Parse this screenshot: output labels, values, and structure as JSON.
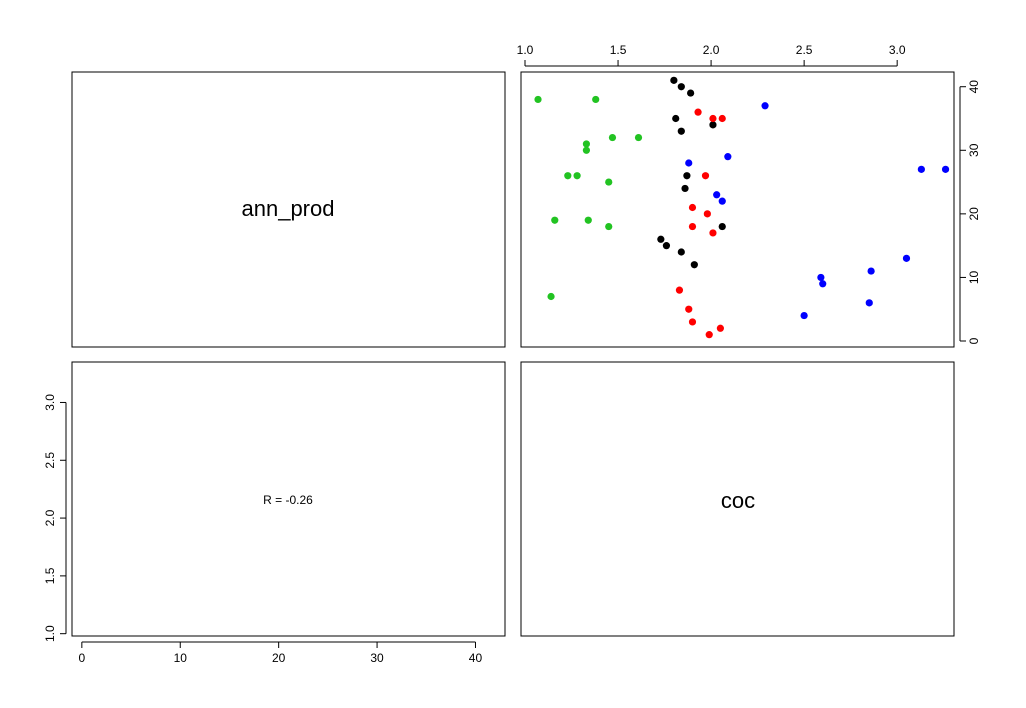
{
  "chart_data": {
    "type": "scatter",
    "layout": "pairs-matrix",
    "variables": [
      "ann_prod",
      "coc"
    ],
    "diagonal_labels": {
      "ann_prod": "ann_prod",
      "coc": "coc"
    },
    "correlation_text": "R = -0.26",
    "upper_panel": {
      "x_variable": "coc",
      "y_variable": "ann_prod",
      "xlim": [
        1.0,
        3.3
      ],
      "ylim": [
        0,
        42
      ],
      "x_ticks": [
        1.0,
        1.5,
        2.0,
        2.5,
        3.0
      ],
      "x_tick_labels": [
        "1.0",
        "1.5",
        "2.0",
        "2.5",
        "3.0"
      ],
      "y_ticks": [
        0,
        10,
        20,
        30,
        40
      ],
      "y_tick_labels": [
        "0",
        "10",
        "20",
        "30",
        "40"
      ],
      "x_axis_side": "top",
      "y_axis_side": "right",
      "series": [
        {
          "color": "#22c322",
          "points": [
            [
              1.07,
              38
            ],
            [
              1.38,
              38
            ],
            [
              1.33,
              31
            ],
            [
              1.33,
              30
            ],
            [
              1.47,
              32
            ],
            [
              1.61,
              32
            ],
            [
              1.23,
              26
            ],
            [
              1.28,
              26
            ],
            [
              1.45,
              25
            ],
            [
              1.16,
              19
            ],
            [
              1.34,
              19
            ],
            [
              1.45,
              18
            ],
            [
              1.14,
              7
            ]
          ]
        },
        {
          "color": "#000000",
          "points": [
            [
              1.8,
              41
            ],
            [
              1.84,
              40
            ],
            [
              1.89,
              39
            ],
            [
              1.81,
              35
            ],
            [
              1.84,
              33
            ],
            [
              2.01,
              34
            ],
            [
              1.87,
              26
            ],
            [
              1.86,
              24
            ],
            [
              2.06,
              18
            ],
            [
              1.73,
              16
            ],
            [
              1.76,
              15
            ],
            [
              1.84,
              14
            ],
            [
              1.91,
              12
            ]
          ]
        },
        {
          "color": "#ff0000",
          "points": [
            [
              1.93,
              36
            ],
            [
              2.01,
              35
            ],
            [
              2.06,
              35
            ],
            [
              1.97,
              26
            ],
            [
              1.9,
              21
            ],
            [
              1.98,
              20
            ],
            [
              1.9,
              18
            ],
            [
              2.01,
              17
            ],
            [
              1.83,
              8
            ],
            [
              1.88,
              5
            ],
            [
              1.9,
              3
            ],
            [
              2.05,
              2
            ],
            [
              1.99,
              1
            ]
          ]
        },
        {
          "color": "#0000ff",
          "points": [
            [
              2.29,
              37
            ],
            [
              1.88,
              28
            ],
            [
              2.09,
              29
            ],
            [
              2.03,
              23
            ],
            [
              2.06,
              22
            ],
            [
              3.13,
              27
            ],
            [
              3.26,
              27
            ],
            [
              3.05,
              13
            ],
            [
              2.59,
              10
            ],
            [
              2.6,
              9
            ],
            [
              2.86,
              11
            ],
            [
              2.85,
              6
            ],
            [
              2.5,
              4
            ]
          ]
        }
      ]
    },
    "lower_panel": {
      "x_variable": "ann_prod",
      "y_variable": "coc",
      "xlim": [
        -1,
        43
      ],
      "ylim": [
        0.98,
        3.35
      ],
      "x_ticks": [
        0,
        10,
        20,
        30,
        40
      ],
      "x_tick_labels": [
        "0",
        "10",
        "20",
        "30",
        "40"
      ],
      "y_ticks": [
        1.0,
        1.5,
        2.0,
        2.5,
        3.0
      ],
      "y_tick_labels": [
        "1.0",
        "1.5",
        "2.0",
        "2.5",
        "3.0"
      ],
      "x_axis_side": "bottom",
      "y_axis_side": "left"
    }
  }
}
